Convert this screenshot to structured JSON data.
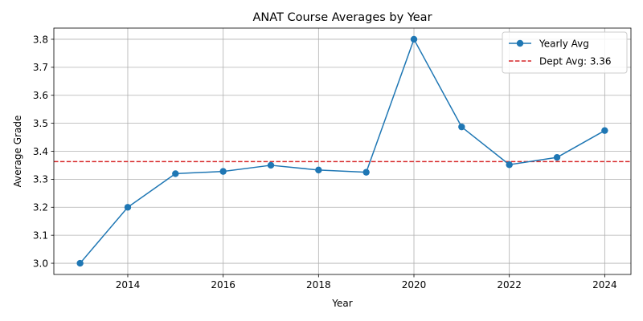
{
  "chart_data": {
    "type": "line",
    "title": "ANAT Course Averages by Year",
    "xlabel": "Year",
    "ylabel": "Average Grade",
    "xlim": [
      2012.45,
      2024.55
    ],
    "ylim": [
      2.96,
      3.84
    ],
    "xticks": [
      2014,
      2016,
      2018,
      2020,
      2022,
      2024
    ],
    "xtick_labels": [
      "2014",
      "2016",
      "2018",
      "2020",
      "2022",
      "2024"
    ],
    "yticks": [
      3.0,
      3.1,
      3.2,
      3.3,
      3.4,
      3.5,
      3.6,
      3.7,
      3.8
    ],
    "ytick_labels": [
      "3.0",
      "3.1",
      "3.2",
      "3.3",
      "3.4",
      "3.5",
      "3.6",
      "3.7",
      "3.8"
    ],
    "grid": true,
    "legend_position": "top-right",
    "series": [
      {
        "name": "Yearly Avg",
        "color": "#1f77b4",
        "marker": "circle",
        "x": [
          2013,
          2014,
          2015,
          2016,
          2017,
          2018,
          2019,
          2020,
          2021,
          2022,
          2023,
          2024
        ],
        "y": [
          3.0,
          3.2,
          3.32,
          3.328,
          3.35,
          3.333,
          3.325,
          3.8,
          3.487,
          3.352,
          3.378,
          3.474
        ]
      }
    ],
    "reference_lines": [
      {
        "name": "Dept Avg: 3.36",
        "value": 3.363,
        "color": "#d62728",
        "style": "dashed"
      }
    ]
  }
}
